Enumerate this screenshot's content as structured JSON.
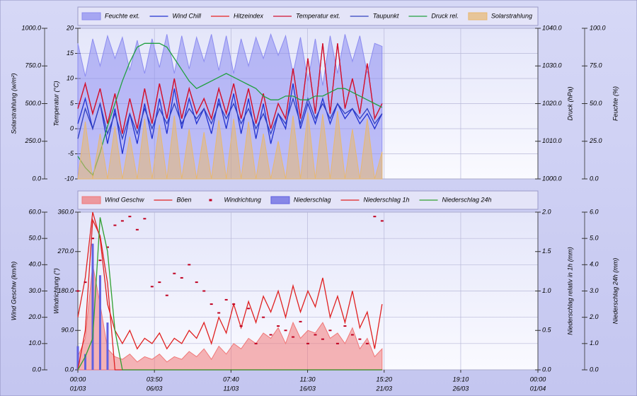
{
  "chart_data": [
    {
      "type": "line",
      "grid": true,
      "x": [
        0,
        0.5,
        1,
        1.5,
        2,
        2.5,
        3,
        3.5,
        4,
        4.5,
        5,
        5.5,
        6,
        6.5,
        7,
        7.5,
        8,
        8.5,
        9,
        9.5,
        10,
        10.5,
        11,
        11.5,
        12,
        12.5,
        13,
        13.5,
        14,
        14.5,
        15,
        15.5,
        16,
        16.5,
        17,
        17.5,
        18,
        18.5,
        19,
        19.5,
        20,
        20.5
      ],
      "xlim": [
        0,
        31
      ],
      "axes": [
        {
          "label": "Solarstrahlung (w/m²)",
          "lim": [
            0,
            1000
          ],
          "ticks": [
            {
              "value": 0,
              "label": "0.0"
            },
            {
              "value": 250,
              "label": "250.0"
            },
            {
              "value": 500,
              "label": "500.0"
            },
            {
              "value": 750,
              "label": "750.0"
            },
            {
              "value": 1000,
              "label": "1000.0"
            }
          ]
        },
        {
          "label": "Temperatur (°C)",
          "lim": [
            -10,
            20
          ],
          "ticks": [
            -10,
            -5,
            0,
            5,
            10,
            15,
            20
          ]
        },
        {
          "label": "Druck (hPa)",
          "lim": [
            1000,
            1040
          ],
          "ticks": [
            {
              "value": 1000,
              "label": "1000.0"
            },
            {
              "value": 1010,
              "label": "1010.0"
            },
            {
              "value": 1020,
              "label": "1020.0"
            },
            {
              "value": 1030,
              "label": "1030.0"
            },
            {
              "value": 1040,
              "label": "1040.0"
            }
          ]
        },
        {
          "label": "Feuchte (%)",
          "lim": [
            0,
            100
          ],
          "ticks": [
            {
              "value": 0,
              "label": "0.0"
            },
            {
              "value": 25,
              "label": "25.0"
            },
            {
              "value": 50,
              "label": "50.0"
            },
            {
              "value": 75,
              "label": "75.0"
            },
            {
              "value": 100,
              "label": "100.0"
            }
          ]
        }
      ],
      "series": [
        {
          "name": "Feuchte ext.",
          "kind": "area",
          "axis": 3,
          "color": "#8c8cf0",
          "values": [
            90,
            68,
            93,
            75,
            95,
            80,
            94,
            72,
            92,
            70,
            93,
            74,
            96,
            70,
            95,
            73,
            94,
            78,
            96,
            72,
            95,
            70,
            93,
            75,
            94,
            80,
            96,
            82,
            95,
            70,
            94,
            65,
            93,
            62,
            95,
            70,
            96,
            78,
            95,
            70,
            90,
            88
          ]
        },
        {
          "name": "Wind Chill",
          "kind": "line",
          "axis": 1,
          "color": "#2030d0",
          "values": [
            1,
            6,
            0,
            5,
            -3,
            4,
            -5,
            3,
            -3,
            5,
            -2,
            6,
            -1,
            8,
            0,
            6,
            1,
            4,
            -1,
            6,
            0,
            7,
            -1,
            6,
            -2,
            5,
            -3,
            3,
            0,
            9,
            0,
            5,
            1,
            6,
            1,
            5,
            2,
            4,
            1,
            3,
            0,
            3
          ]
        },
        {
          "name": "Hitzeindex",
          "kind": "line",
          "axis": 1,
          "color": "#e82020",
          "values": [
            4,
            9,
            3,
            8,
            1,
            7,
            -1,
            6,
            0,
            8,
            1,
            9,
            2,
            10,
            2,
            8,
            3,
            6,
            2,
            8,
            3,
            9,
            2,
            8,
            1,
            7,
            0,
            5,
            2,
            12,
            2,
            14,
            3,
            17,
            3,
            17,
            4,
            10,
            3,
            13,
            2,
            5
          ]
        },
        {
          "name": "Temperatur ext.",
          "kind": "line",
          "axis": 1,
          "color": "#d01030",
          "values": [
            4,
            9,
            3,
            8,
            1,
            7,
            -1,
            6,
            0,
            8,
            1,
            9,
            2,
            10,
            2,
            8,
            3,
            6,
            2,
            8,
            3,
            9,
            2,
            8,
            1,
            7,
            0,
            5,
            2,
            12,
            2,
            14,
            3,
            17,
            3,
            17,
            4,
            10,
            3,
            13,
            2,
            5
          ]
        },
        {
          "name": "Taupunkt",
          "kind": "line",
          "axis": 1,
          "color": "#3040c0",
          "values": [
            -2,
            4,
            0,
            5,
            -1,
            3,
            -2,
            3,
            -1,
            4,
            0,
            4,
            1,
            5,
            1,
            4,
            2,
            4,
            1,
            5,
            2,
            5,
            1,
            4,
            0,
            3,
            -1,
            3,
            1,
            6,
            1,
            6,
            2,
            5,
            2,
            5,
            3,
            4,
            2,
            4,
            1,
            3
          ]
        },
        {
          "name": "Druck rel.",
          "kind": "line",
          "axis": 2,
          "color": "#20a040",
          "values": [
            1006,
            1003,
            1001,
            1007,
            1014,
            1020,
            1026,
            1031,
            1035,
            1036,
            1036,
            1036,
            1035,
            1032,
            1029,
            1026,
            1024,
            1025,
            1026,
            1027,
            1028,
            1027,
            1026,
            1025,
            1024,
            1022,
            1021,
            1021,
            1022,
            1022,
            1021,
            1021,
            1022,
            1022,
            1023,
            1024,
            1024,
            1023,
            1022,
            1021,
            1020,
            1019
          ]
        },
        {
          "name": "Solarstrahlung",
          "kind": "area",
          "axis": 0,
          "color": "#e8b870",
          "values": [
            0,
            380,
            0,
            300,
            0,
            350,
            0,
            280,
            0,
            400,
            0,
            360,
            0,
            420,
            0,
            330,
            0,
            310,
            0,
            390,
            0,
            400,
            0,
            380,
            0,
            300,
            0,
            250,
            0,
            420,
            0,
            440,
            0,
            430,
            0,
            450,
            0,
            330,
            0,
            400,
            0,
            180
          ]
        }
      ]
    },
    {
      "type": "line",
      "grid": true,
      "x": [
        0,
        0.5,
        1,
        1.5,
        2,
        2.5,
        3,
        3.5,
        4,
        4.5,
        5,
        5.5,
        6,
        6.5,
        7,
        7.5,
        8,
        8.5,
        9,
        9.5,
        10,
        10.5,
        11,
        11.5,
        12,
        12.5,
        13,
        13.5,
        14,
        14.5,
        15,
        15.5,
        16,
        16.5,
        17,
        17.5,
        18,
        18.5,
        19,
        19.5,
        20,
        20.5
      ],
      "xlim": [
        0,
        31
      ],
      "xticks": [
        {
          "value": 0,
          "label": "00:00"
        },
        {
          "value": 5.1597,
          "label": "03:50"
        },
        {
          "value": 10.3194,
          "label": "07:40"
        },
        {
          "value": 15.4792,
          "label": "11:30"
        },
        {
          "value": 20.6389,
          "label": "15:20"
        },
        {
          "value": 25.7986,
          "label": "19:10"
        },
        {
          "value": 31,
          "label": "00:00"
        }
      ],
      "xtick_dates": [
        "01/03",
        "06/03",
        "11/03",
        "16/03",
        "21/03",
        "26/03",
        "01/04"
      ],
      "axes": [
        {
          "label": "Wind Geschw (km/h)",
          "lim": [
            0,
            60
          ],
          "ticks": [
            {
              "value": 0,
              "label": "0.0"
            },
            {
              "value": 10,
              "label": "10.0"
            },
            {
              "value": 20,
              "label": "20.0"
            },
            {
              "value": 30,
              "label": "30.0"
            },
            {
              "value": 40,
              "label": "40.0"
            },
            {
              "value": 50,
              "label": "50.0"
            },
            {
              "value": 60,
              "label": "60.0"
            }
          ]
        },
        {
          "label": "Windrichtung (°)",
          "lim": [
            0,
            360
          ],
          "ticks": [
            {
              "value": 0,
              "label": "0.0"
            },
            {
              "value": 90,
              "label": "90.0"
            },
            {
              "value": 180,
              "label": "180.0"
            },
            {
              "value": 270,
              "label": "270.0"
            },
            {
              "value": 360,
              "label": "360.0"
            }
          ]
        },
        {
          "label": "Niederschlag relativ in 1h (mm)",
          "lim": [
            0,
            2
          ],
          "ticks": [
            {
              "value": 0,
              "label": "0.0"
            },
            {
              "value": 0.5,
              "label": "0.5"
            },
            {
              "value": 1,
              "label": "1.0"
            },
            {
              "value": 1.5,
              "label": "1.5"
            },
            {
              "value": 2,
              "label": "2.0"
            }
          ]
        },
        {
          "label": "Niederschlag 24h (mm)",
          "lim": [
            0,
            6
          ],
          "ticks": [
            {
              "value": 0,
              "label": "0.0"
            },
            {
              "value": 1,
              "label": "1.0"
            },
            {
              "value": 2,
              "label": "2.0"
            },
            {
              "value": 3,
              "label": "3.0"
            },
            {
              "value": 4,
              "label": "4.0"
            },
            {
              "value": 5,
              "label": "5.0"
            },
            {
              "value": 6,
              "label": "6.0"
            }
          ]
        }
      ],
      "series": [
        {
          "name": "Wind Geschw",
          "kind": "area",
          "axis": 0,
          "color": "#f07878",
          "values": [
            5,
            12,
            40,
            25,
            8,
            5,
            4,
            6,
            3,
            5,
            4,
            6,
            3,
            5,
            4,
            7,
            5,
            8,
            4,
            9,
            6,
            10,
            8,
            12,
            10,
            14,
            12,
            16,
            10,
            18,
            12,
            15,
            14,
            18,
            12,
            14,
            10,
            16,
            8,
            12,
            5,
            8
          ]
        },
        {
          "name": "Böen",
          "kind": "line",
          "axis": 0,
          "color": "#e02020",
          "values": [
            20,
            35,
            60,
            50,
            25,
            15,
            10,
            15,
            8,
            12,
            10,
            14,
            8,
            12,
            10,
            15,
            12,
            18,
            10,
            20,
            14,
            25,
            16,
            26,
            18,
            28,
            22,
            30,
            20,
            32,
            22,
            30,
            24,
            35,
            20,
            28,
            18,
            30,
            16,
            22,
            8,
            25
          ]
        },
        {
          "name": "Windrichtung",
          "kind": "points",
          "axis": 1,
          "color": "#c00020",
          "values": [
            180,
            200,
            300,
            250,
            280,
            330,
            340,
            350,
            320,
            345,
            190,
            200,
            170,
            220,
            210,
            240,
            200,
            180,
            150,
            130,
            160,
            150,
            100,
            140,
            60,
            120,
            80,
            100,
            90,
            75,
            110,
            60,
            80,
            70,
            90,
            60,
            100,
            80,
            70,
            60,
            350,
            340
          ]
        },
        {
          "name": "Niederschlag",
          "kind": "bar",
          "axis": 2,
          "color": "#6060e0",
          "values": [
            0.3,
            0.2,
            1.6,
            1.2,
            0.6,
            0,
            0,
            0,
            0,
            0,
            0,
            0,
            0,
            0,
            0,
            0,
            0,
            0,
            0,
            0,
            0,
            0,
            0,
            0,
            0,
            0,
            0,
            0,
            0,
            0,
            0,
            0,
            0,
            0,
            0,
            0,
            0,
            0,
            0,
            0,
            0,
            0
          ]
        },
        {
          "name": "Niederschlag 1h",
          "kind": "line",
          "axis": 2,
          "color": "#e02020",
          "values": [
            0,
            0.5,
            1.9,
            1.7,
            1.1,
            0,
            0,
            0,
            0,
            0,
            0,
            0,
            0,
            0,
            0,
            0,
            0,
            0,
            0,
            0,
            0,
            0,
            0,
            0,
            0,
            0,
            0,
            0,
            0,
            0,
            0,
            0,
            0,
            0,
            0,
            0,
            0,
            0,
            0,
            0,
            0,
            0
          ]
        },
        {
          "name": "Niederschlag 24h",
          "kind": "line",
          "axis": 3,
          "color": "#30a030",
          "values": [
            0,
            0.5,
            1.2,
            5.8,
            4.5,
            1.5,
            0,
            0,
            0,
            0,
            0,
            0,
            0,
            0,
            0,
            0,
            0,
            0,
            0,
            0,
            0,
            0,
            0,
            0,
            0,
            0,
            0,
            0,
            0,
            0,
            0,
            0,
            0,
            0,
            0,
            0,
            0,
            0,
            0,
            0,
            0,
            0
          ]
        }
      ]
    }
  ]
}
